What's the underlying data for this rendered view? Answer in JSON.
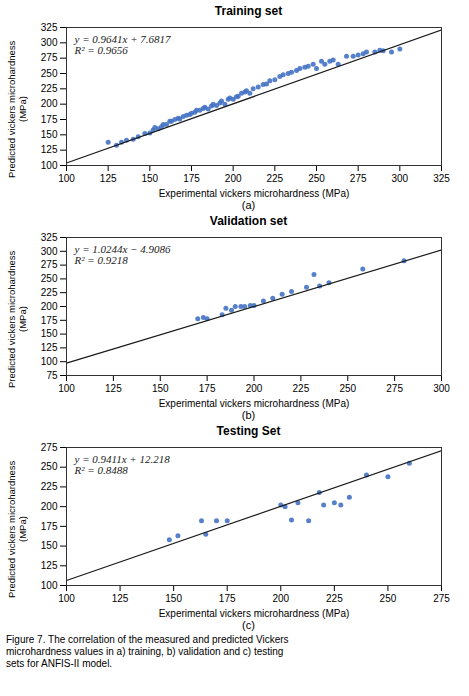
{
  "chart_data": [
    {
      "type": "scatter",
      "title": "Training set",
      "xlabel": "Experimental vickers microhardness (MPa)",
      "ylabel": "Predicted vickers microhardness (MPa)",
      "xlim": [
        100,
        325
      ],
      "ylim": [
        100,
        325
      ],
      "xticks": [
        100,
        125,
        150,
        175,
        200,
        225,
        250,
        275,
        300,
        325
      ],
      "yticks": [
        100,
        125,
        150,
        175,
        200,
        225,
        250,
        275,
        300,
        325
      ],
      "series": [
        {
          "type": "scatter",
          "color": "#4472c4",
          "x": [
            125,
            130,
            133,
            136,
            140,
            143,
            147,
            150,
            152,
            153,
            155,
            157,
            158,
            160,
            162,
            163,
            165,
            167,
            168,
            170,
            172,
            174,
            175,
            177,
            178,
            180,
            182,
            183,
            185,
            187,
            188,
            190,
            192,
            193,
            195,
            197,
            198,
            200,
            202,
            203,
            205,
            207,
            208,
            210,
            212,
            215,
            218,
            220,
            222,
            225,
            228,
            230,
            233,
            235,
            238,
            240,
            243,
            245,
            248,
            250,
            253,
            255,
            258,
            260,
            263,
            268,
            272,
            275,
            278,
            280,
            285,
            288,
            290,
            295,
            300
          ],
          "values": [
            138,
            133,
            138,
            141,
            143,
            147,
            152,
            153,
            158,
            162,
            160,
            163,
            167,
            167,
            172,
            172,
            175,
            177,
            176,
            180,
            182,
            183,
            185,
            187,
            190,
            190,
            193,
            195,
            192,
            197,
            200,
            198,
            202,
            205,
            200,
            208,
            210,
            208,
            212,
            213,
            218,
            220,
            222,
            218,
            225,
            228,
            232,
            233,
            238,
            240,
            245,
            248,
            250,
            252,
            255,
            258,
            260,
            262,
            265,
            258,
            270,
            265,
            270,
            272,
            265,
            278,
            278,
            280,
            282,
            285,
            285,
            288,
            287,
            285,
            290
          ]
        },
        {
          "type": "line",
          "color": "#1a1a1a",
          "x": [
            100,
            325
          ],
          "values": [
            104.0917,
            321.0142
          ]
        }
      ],
      "annotations": [
        "y = 0.9641x + 7.6817",
        "R² = 0.9656"
      ],
      "caption": "(a)"
    },
    {
      "type": "scatter",
      "title": "Validation set",
      "xlabel": "Experimental vickers microhardness (MPa)",
      "ylabel": "Predicted vickers microhardness (MPa)",
      "xlim": [
        100,
        300
      ],
      "ylim": [
        75,
        325
      ],
      "xticks": [
        100,
        125,
        150,
        175,
        200,
        225,
        250,
        275,
        300
      ],
      "yticks": [
        75,
        100,
        125,
        150,
        175,
        200,
        225,
        250,
        275,
        300,
        325
      ],
      "series": [
        {
          "type": "scatter",
          "color": "#4472c4",
          "x": [
            170,
            173,
            175,
            183,
            185,
            188,
            190,
            193,
            195,
            198,
            200,
            205,
            210,
            215,
            220,
            228,
            232,
            235,
            240,
            258,
            280
          ],
          "values": [
            178,
            180,
            178,
            185,
            197,
            193,
            200,
            200,
            200,
            202,
            202,
            210,
            215,
            222,
            227,
            235,
            258,
            237,
            243,
            268,
            283
          ]
        },
        {
          "type": "line",
          "color": "#1a1a1a",
          "x": [
            100,
            300
          ],
          "values": [
            97.5314,
            302.4114
          ]
        }
      ],
      "annotations": [
        "y = 1.0244x − 4.9086",
        "R² = 0.9218"
      ],
      "caption": "(b)"
    },
    {
      "type": "scatter",
      "title": "Testing Set",
      "xlabel": "Experimental vickers microhardness (MPa)",
      "ylabel": "Predicted vickers microhardness (MPa)",
      "xlim": [
        100,
        275
      ],
      "ylim": [
        100,
        275
      ],
      "xticks": [
        100,
        125,
        150,
        175,
        200,
        225,
        250,
        275
      ],
      "yticks": [
        100,
        125,
        150,
        175,
        200,
        225,
        250,
        275
      ],
      "series": [
        {
          "type": "scatter",
          "color": "#4472c4",
          "x": [
            148,
            152,
            163,
            165,
            170,
            175,
            200,
            202,
            205,
            208,
            213,
            218,
            220,
            225,
            228,
            232,
            240,
            250,
            260
          ],
          "values": [
            158,
            163,
            182,
            165,
            182,
            182,
            202,
            200,
            183,
            205,
            182,
            218,
            202,
            205,
            202,
            212,
            240,
            238,
            255
          ]
        },
        {
          "type": "line",
          "color": "#1a1a1a",
          "x": [
            100,
            275
          ],
          "values": [
            106.328,
            271.0205
          ]
        }
      ],
      "annotations": [
        "y = 0.9411x + 12.218",
        "R² = 0.8488"
      ],
      "caption": "(c)"
    }
  ],
  "caption": "Figure 7. The correlation of the measured and predicted Vickers\nmicrohardness values in a) training, b) validation and c) testing\nsets for ANFIS-II model."
}
